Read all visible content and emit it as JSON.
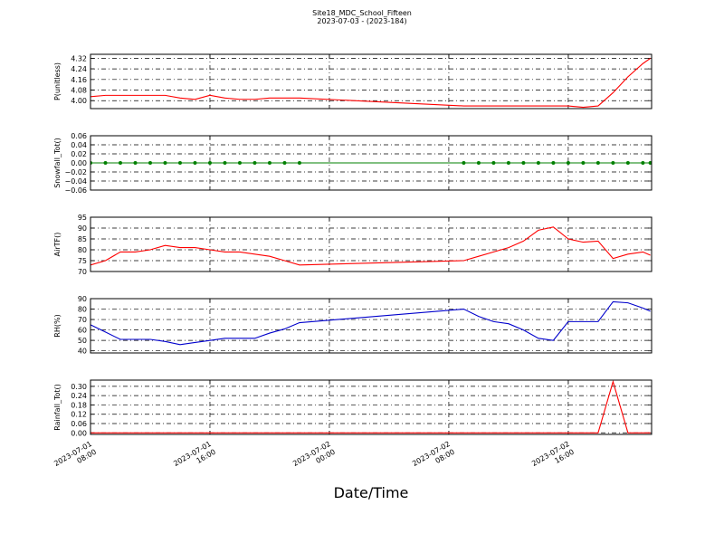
{
  "title": "Site18_MDC_School_Fifteen",
  "subtitle": "2023-07-03 - (2023-184)",
  "xlabel": "Date/Time",
  "chart_data": [
    {
      "type": "line",
      "ylabel": "P(unitless)",
      "color": "#ff0000",
      "grid": true,
      "x": [
        "2023-07-01 08:00",
        "2023-07-01 09:00",
        "2023-07-01 10:00",
        "2023-07-01 11:00",
        "2023-07-01 12:00",
        "2023-07-01 13:00",
        "2023-07-01 14:00",
        "2023-07-01 15:00",
        "2023-07-01 16:00",
        "2023-07-01 17:00",
        "2023-07-01 18:00",
        "2023-07-01 19:00",
        "2023-07-01 20:00",
        "2023-07-01 21:00",
        "2023-07-01 22:00",
        "2023-07-02 09:00",
        "2023-07-02 10:00",
        "2023-07-02 11:00",
        "2023-07-02 12:00",
        "2023-07-02 13:00",
        "2023-07-02 14:00",
        "2023-07-02 15:00",
        "2023-07-02 16:00",
        "2023-07-02 17:00",
        "2023-07-02 18:00",
        "2023-07-02 19:00",
        "2023-07-02 20:00",
        "2023-07-02 21:00",
        "2023-07-02 21:30"
      ],
      "values": [
        4.03,
        4.04,
        4.04,
        4.04,
        4.04,
        4.04,
        4.02,
        4.01,
        4.04,
        4.02,
        4.01,
        4.01,
        4.02,
        4.02,
        4.02,
        3.96,
        3.96,
        3.96,
        3.96,
        3.96,
        3.96,
        3.96,
        3.96,
        3.95,
        3.96,
        4.06,
        4.18,
        4.28,
        4.32
      ],
      "xlim": [
        "2023-07-01 08:00",
        "2023-07-02 21:35"
      ],
      "xticks": [
        "2023-07-01 08:00",
        "2023-07-01 16:00",
        "2023-07-02 00:00",
        "2023-07-02 08:00",
        "2023-07-02 16:00"
      ],
      "ylim": [
        3.94,
        4.35
      ],
      "yticks": [
        {
          "value": 4,
          "label": "4.00"
        },
        4.08,
        4.16,
        4.24,
        4.32
      ]
    },
    {
      "type": "line",
      "ylabel": "Snowfall_Tot()",
      "color": "#008000",
      "marker": true,
      "grid": true,
      "x": [
        "2023-07-01 08:00",
        "2023-07-01 09:00",
        "2023-07-01 10:00",
        "2023-07-01 11:00",
        "2023-07-01 12:00",
        "2023-07-01 13:00",
        "2023-07-01 14:00",
        "2023-07-01 15:00",
        "2023-07-01 16:00",
        "2023-07-01 17:00",
        "2023-07-01 18:00",
        "2023-07-01 19:00",
        "2023-07-01 20:00",
        "2023-07-01 21:00",
        "2023-07-01 22:00",
        "2023-07-02 09:00",
        "2023-07-02 10:00",
        "2023-07-02 11:00",
        "2023-07-02 12:00",
        "2023-07-02 13:00",
        "2023-07-02 14:00",
        "2023-07-02 15:00",
        "2023-07-02 16:00",
        "2023-07-02 17:00",
        "2023-07-02 18:00",
        "2023-07-02 19:00",
        "2023-07-02 20:00",
        "2023-07-02 21:00",
        "2023-07-02 21:30"
      ],
      "values": [
        0,
        0,
        0,
        0,
        0,
        0,
        0,
        0,
        0,
        0,
        0,
        0,
        0,
        0,
        0,
        0,
        0,
        0,
        0,
        0,
        0,
        0,
        0,
        0,
        0,
        0,
        0,
        0,
        0
      ],
      "xlim": [
        "2023-07-01 08:00",
        "2023-07-02 21:35"
      ],
      "xticks": [
        "2023-07-01 08:00",
        "2023-07-01 16:00",
        "2023-07-02 00:00",
        "2023-07-02 08:00",
        "2023-07-02 16:00"
      ],
      "ylim": [
        -0.06,
        0.06
      ],
      "yticks": [
        {
          "value": -0.06,
          "label": "−0.06"
        },
        {
          "value": -0.04,
          "label": "−0.04"
        },
        {
          "value": -0.02,
          "label": "−0.02"
        },
        {
          "value": 0,
          "label": "0.00"
        },
        0.02,
        0.04,
        0.06
      ]
    },
    {
      "type": "line",
      "ylabel": "AirTF()",
      "color": "#ff0000",
      "grid": true,
      "x": [
        "2023-07-01 08:00",
        "2023-07-01 09:00",
        "2023-07-01 10:00",
        "2023-07-01 11:00",
        "2023-07-01 12:00",
        "2023-07-01 13:00",
        "2023-07-01 14:00",
        "2023-07-01 15:00",
        "2023-07-01 16:00",
        "2023-07-01 17:00",
        "2023-07-01 18:00",
        "2023-07-01 19:00",
        "2023-07-01 20:00",
        "2023-07-01 21:00",
        "2023-07-01 22:00",
        "2023-07-02 09:00",
        "2023-07-02 10:00",
        "2023-07-02 11:00",
        "2023-07-02 12:00",
        "2023-07-02 13:00",
        "2023-07-02 14:00",
        "2023-07-02 15:00",
        "2023-07-02 16:00",
        "2023-07-02 17:00",
        "2023-07-02 18:00",
        "2023-07-02 19:00",
        "2023-07-02 20:00",
        "2023-07-02 21:00",
        "2023-07-02 21:30"
      ],
      "values": [
        73,
        75,
        79,
        79,
        80,
        82,
        81,
        81,
        80,
        79,
        79,
        78,
        77,
        75,
        73,
        75,
        77,
        79,
        81,
        84,
        89,
        90.5,
        85,
        83.5,
        84,
        76,
        78,
        79,
        77.5
      ],
      "xlim": [
        "2023-07-01 08:00",
        "2023-07-02 21:35"
      ],
      "xticks": [
        "2023-07-01 08:00",
        "2023-07-01 16:00",
        "2023-07-02 00:00",
        "2023-07-02 08:00",
        "2023-07-02 16:00"
      ],
      "ylim": [
        70,
        95
      ],
      "yticks": [
        70,
        75,
        80,
        85,
        90,
        95
      ]
    },
    {
      "type": "line",
      "ylabel": "RH(%)",
      "color": "#0000cc",
      "grid": true,
      "x": [
        "2023-07-01 08:00",
        "2023-07-01 09:00",
        "2023-07-01 10:00",
        "2023-07-01 11:00",
        "2023-07-01 12:00",
        "2023-07-01 13:00",
        "2023-07-01 14:00",
        "2023-07-01 15:00",
        "2023-07-01 16:00",
        "2023-07-01 17:00",
        "2023-07-01 18:00",
        "2023-07-01 19:00",
        "2023-07-01 20:00",
        "2023-07-01 21:00",
        "2023-07-01 22:00",
        "2023-07-02 09:00",
        "2023-07-02 10:00",
        "2023-07-02 11:00",
        "2023-07-02 12:00",
        "2023-07-02 13:00",
        "2023-07-02 14:00",
        "2023-07-02 15:00",
        "2023-07-02 16:00",
        "2023-07-02 17:00",
        "2023-07-02 18:00",
        "2023-07-02 19:00",
        "2023-07-02 20:00",
        "2023-07-02 21:00",
        "2023-07-02 21:30"
      ],
      "values": [
        65,
        58,
        51,
        51,
        51,
        49,
        46,
        48,
        50,
        52,
        52,
        52,
        57,
        61,
        67,
        80,
        73,
        68,
        66,
        60,
        52,
        50,
        68,
        68,
        68,
        87,
        86,
        81,
        78
      ],
      "xlim": [
        "2023-07-01 08:00",
        "2023-07-02 21:35"
      ],
      "xticks": [
        "2023-07-01 08:00",
        "2023-07-01 16:00",
        "2023-07-02 00:00",
        "2023-07-02 08:00",
        "2023-07-02 16:00"
      ],
      "ylim": [
        38,
        90
      ],
      "yticks": [
        40,
        50,
        60,
        70,
        80,
        90
      ]
    },
    {
      "type": "line",
      "ylabel": "Rainfall_Tot()",
      "color": "#ff0000",
      "grid": true,
      "x": [
        "2023-07-01 08:00",
        "2023-07-01 09:00",
        "2023-07-01 10:00",
        "2023-07-01 11:00",
        "2023-07-01 12:00",
        "2023-07-01 13:00",
        "2023-07-01 14:00",
        "2023-07-01 15:00",
        "2023-07-01 16:00",
        "2023-07-01 17:00",
        "2023-07-01 18:00",
        "2023-07-01 19:00",
        "2023-07-01 20:00",
        "2023-07-01 21:00",
        "2023-07-01 22:00",
        "2023-07-02 09:00",
        "2023-07-02 10:00",
        "2023-07-02 11:00",
        "2023-07-02 12:00",
        "2023-07-02 13:00",
        "2023-07-02 14:00",
        "2023-07-02 15:00",
        "2023-07-02 16:00",
        "2023-07-02 17:00",
        "2023-07-02 18:00",
        "2023-07-02 19:00",
        "2023-07-02 20:00",
        "2023-07-02 21:00",
        "2023-07-02 21:30"
      ],
      "values": [
        0,
        0,
        0,
        0,
        0,
        0,
        0,
        0,
        0,
        0,
        0,
        0,
        0,
        0,
        0,
        0,
        0,
        0,
        0,
        0,
        0,
        0,
        0,
        0,
        0,
        0.33,
        0,
        0,
        0
      ],
      "xlim": [
        "2023-07-01 08:00",
        "2023-07-02 21:35"
      ],
      "xticks": [
        "2023-07-01 08:00",
        "2023-07-01 16:00",
        "2023-07-02 00:00",
        "2023-07-02 08:00",
        "2023-07-02 16:00"
      ],
      "ylim": [
        -0.01,
        0.34
      ],
      "yticks": [
        {
          "value": 0,
          "label": "0.00"
        },
        0.06,
        0.12,
        0.18,
        0.24,
        {
          "value": 0.3,
          "label": "0.30"
        }
      ]
    }
  ]
}
